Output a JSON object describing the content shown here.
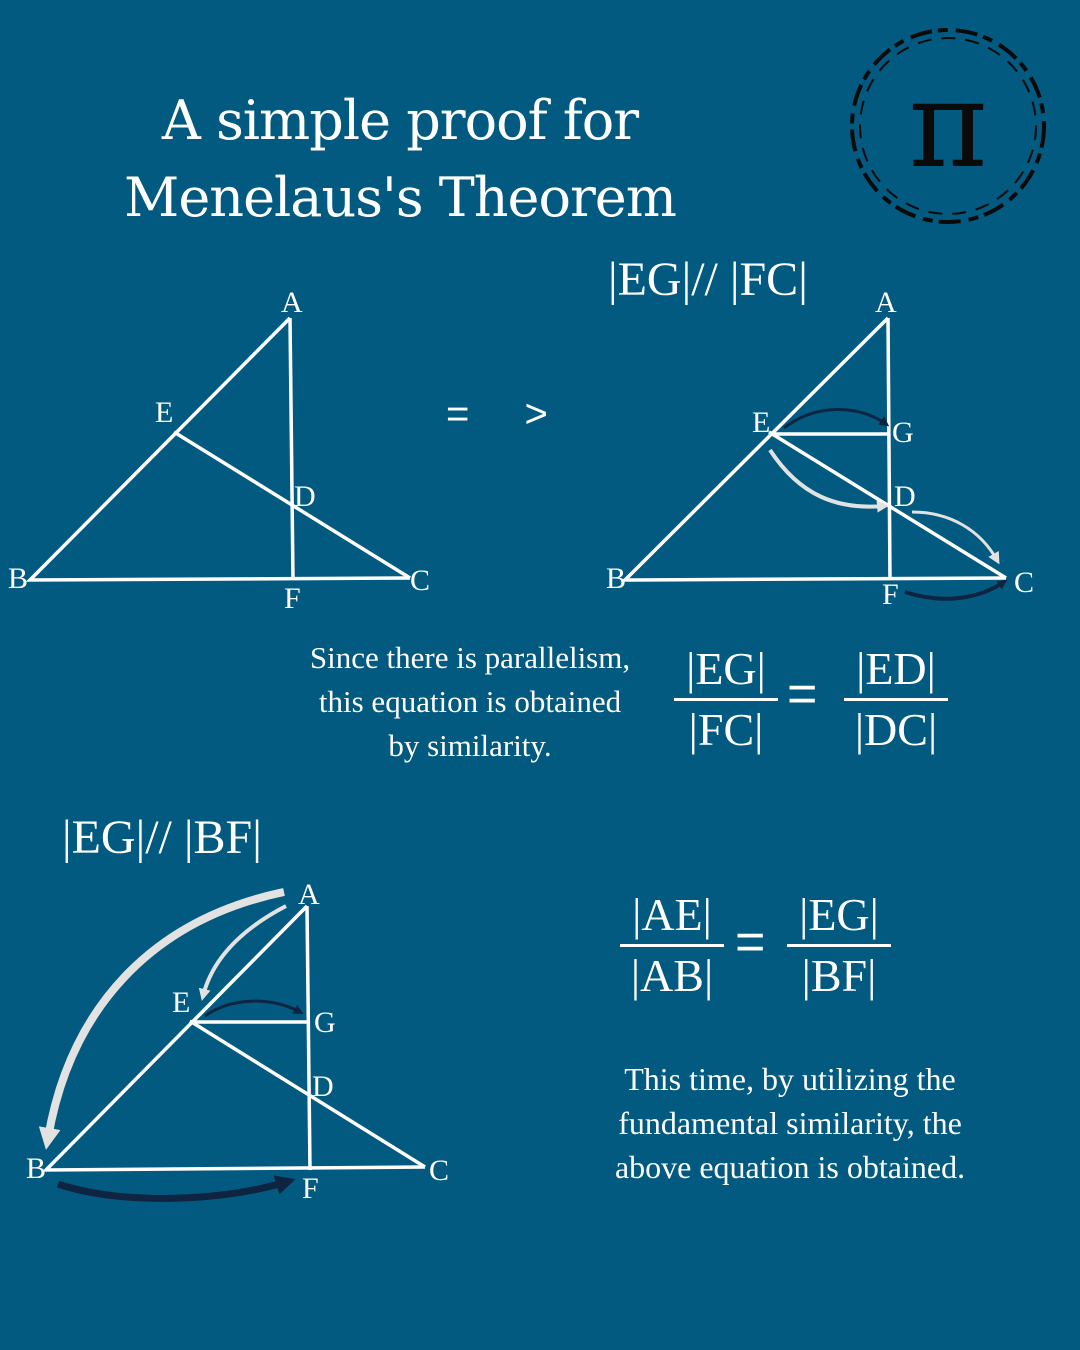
{
  "title": {
    "line1": "A simple proof for",
    "line2": "Menelaus's Theorem"
  },
  "logo": {
    "symbol": "π",
    "icon": "pi-logo"
  },
  "implies_symbol": "= >",
  "panel1": {
    "points": {
      "A": "A",
      "B": "B",
      "C": "C",
      "D": "D",
      "E": "E",
      "F": "F"
    }
  },
  "panel2": {
    "heading": "|EG|// |FC|",
    "points": {
      "A": "A",
      "B": "B",
      "C": "C",
      "D": "D",
      "E": "E",
      "F": "F",
      "G": "G"
    }
  },
  "equation1": {
    "left_num": "|EG|",
    "left_den": "|FC|",
    "equals": "=",
    "right_num": "|ED|",
    "right_den": "|DC|"
  },
  "caption1": {
    "line1": "Since there is parallelism,",
    "line2": "this equation is obtained",
    "line3": "by similarity."
  },
  "panel3": {
    "heading": "|EG|// |BF|",
    "points": {
      "A": "A",
      "B": "B",
      "C": "C",
      "D": "D",
      "E": "E",
      "F": "F",
      "G": "G"
    }
  },
  "equation2": {
    "left_num": "|AE|",
    "left_den": "|AB|",
    "equals": "=",
    "right_num": "|EG|",
    "right_den": "|BF|"
  },
  "caption2": {
    "line1": "This time, by utilizing the",
    "line2": "fundamental similarity, the",
    "line3": "above equation is obtained."
  },
  "colors": {
    "background": "#035a80",
    "line": "#ffffff",
    "arrow_dark": "#0e2440",
    "arrow_light": "#e2e2e2"
  }
}
